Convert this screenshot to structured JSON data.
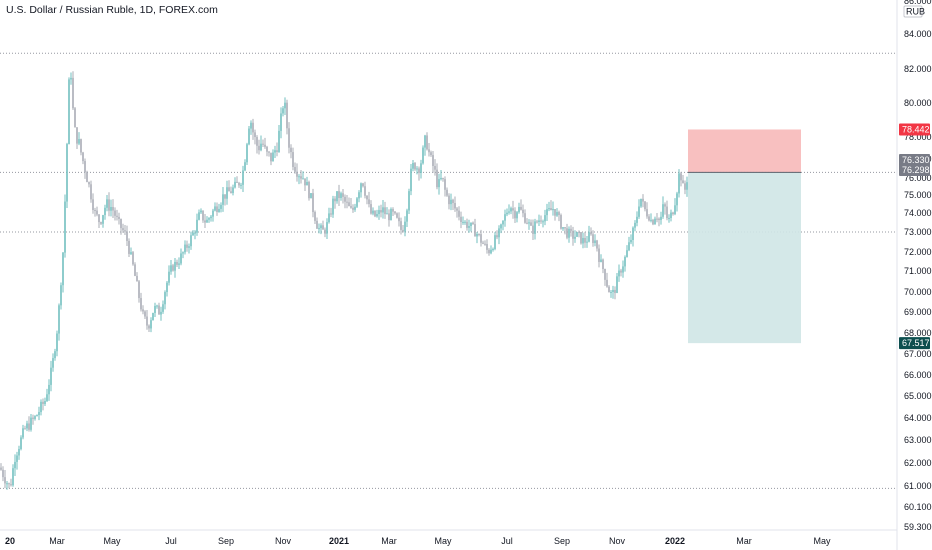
{
  "chart_data": {
    "type": "candlestick",
    "title": "U.S. Dollar / Russian Ruble, 1D, FOREX.com",
    "currency_label": "RUB",
    "y_ticks": [
      "86.000",
      "84.000",
      "82.000",
      "80.000",
      "78.000",
      "77.000",
      "76.000",
      "75.000",
      "74.000",
      "73.000",
      "72.000",
      "71.000",
      "70.000",
      "69.000",
      "68.000",
      "67.000",
      "66.000",
      "65.000",
      "64.000",
      "63.000",
      "62.000",
      "61.000",
      "60.100",
      "59.300"
    ],
    "x_ticks": [
      "20",
      "Mar",
      "May",
      "Jul",
      "Sep",
      "Nov",
      "2021",
      "Mar",
      "May",
      "Jul",
      "Sep",
      "Nov",
      "2022",
      "Mar",
      "May"
    ],
    "price_tags": [
      {
        "label": "78.442",
        "color": "#f23645"
      },
      {
        "label": "76.330",
        "color": "#787b86"
      },
      {
        "label": "76.298",
        "color": "#787b86"
      },
      {
        "label": "67.517",
        "color": "#0d4f4f"
      }
    ],
    "horizontal_lines": [
      82.9,
      76.298,
      73.0,
      60.9
    ],
    "position_tool": {
      "stop": 78.442,
      "entry": 76.298,
      "target": 67.517
    },
    "series_anchors": [
      [
        0,
        61.8
      ],
      [
        10,
        60.9
      ],
      [
        15,
        62.3
      ],
      [
        25,
        63.5
      ],
      [
        35,
        64.0
      ],
      [
        45,
        64.8
      ],
      [
        52,
        66.3
      ],
      [
        58,
        68.5
      ],
      [
        63,
        72.0
      ],
      [
        66,
        76.0
      ],
      [
        70,
        82.8
      ],
      [
        74,
        78.5
      ],
      [
        80,
        77.5
      ],
      [
        85,
        76.5
      ],
      [
        90,
        75.3
      ],
      [
        95,
        74.0
      ],
      [
        100,
        73.5
      ],
      [
        106,
        74.5
      ],
      [
        112,
        74.3
      ],
      [
        118,
        73.5
      ],
      [
        126,
        72.8
      ],
      [
        132,
        71.5
      ],
      [
        138,
        70.0
      ],
      [
        143,
        68.8
      ],
      [
        148,
        68.3
      ],
      [
        154,
        69.2
      ],
      [
        160,
        69.0
      ],
      [
        166,
        70.3
      ],
      [
        172,
        71.2
      ],
      [
        178,
        71.5
      ],
      [
        186,
        72.2
      ],
      [
        194,
        73.0
      ],
      [
        200,
        74.0
      ],
      [
        206,
        73.5
      ],
      [
        212,
        74.0
      ],
      [
        218,
        74.5
      ],
      [
        224,
        75.0
      ],
      [
        230,
        75.2
      ],
      [
        236,
        75.5
      ],
      [
        242,
        76.0
      ],
      [
        246,
        77.5
      ],
      [
        250,
        79.2
      ],
      [
        254,
        78.0
      ],
      [
        258,
        77.5
      ],
      [
        262,
        77.8
      ],
      [
        266,
        77.2
      ],
      [
        272,
        77.0
      ],
      [
        278,
        77.8
      ],
      [
        284,
        80.3
      ],
      [
        288,
        78.0
      ],
      [
        292,
        77.0
      ],
      [
        296,
        76.5
      ],
      [
        300,
        76.2
      ],
      [
        304,
        76.0
      ],
      [
        310,
        75.0
      ],
      [
        314,
        74.0
      ],
      [
        318,
        73.2
      ],
      [
        324,
        73.0
      ],
      [
        328,
        73.5
      ],
      [
        334,
        74.8
      ],
      [
        340,
        75.0
      ],
      [
        346,
        74.5
      ],
      [
        352,
        74.0
      ],
      [
        358,
        75.2
      ],
      [
        362,
        76.0
      ],
      [
        366,
        75.0
      ],
      [
        370,
        74.0
      ],
      [
        376,
        73.8
      ],
      [
        382,
        74.2
      ],
      [
        388,
        73.8
      ],
      [
        392,
        74.0
      ],
      [
        398,
        73.5
      ],
      [
        402,
        73.0
      ],
      [
        406,
        74.0
      ],
      [
        410,
        76.0
      ],
      [
        414,
        76.8
      ],
      [
        418,
        76.5
      ],
      [
        422,
        77.0
      ],
      [
        426,
        78.0
      ],
      [
        430,
        77.0
      ],
      [
        434,
        76.5
      ],
      [
        438,
        75.5
      ],
      [
        442,
        76.0
      ],
      [
        446,
        75.0
      ],
      [
        452,
        74.5
      ],
      [
        458,
        74.0
      ],
      [
        464,
        73.5
      ],
      [
        470,
        73.3
      ],
      [
        476,
        73.0
      ],
      [
        482,
        72.5
      ],
      [
        488,
        72.0
      ],
      [
        494,
        72.5
      ],
      [
        500,
        73.0
      ],
      [
        506,
        74.0
      ],
      [
        510,
        74.5
      ],
      [
        514,
        74.0
      ],
      [
        518,
        74.3
      ],
      [
        522,
        74.0
      ],
      [
        528,
        73.5
      ],
      [
        532,
        73.0
      ],
      [
        536,
        73.5
      ],
      [
        542,
        73.8
      ],
      [
        548,
        74.0
      ],
      [
        554,
        74.3
      ],
      [
        560,
        73.5
      ],
      [
        566,
        73.0
      ],
      [
        572,
        72.8
      ],
      [
        578,
        72.8
      ],
      [
        584,
        72.5
      ],
      [
        590,
        72.8
      ],
      [
        596,
        72.5
      ],
      [
        600,
        71.5
      ],
      [
        604,
        71.0
      ],
      [
        608,
        70.2
      ],
      [
        612,
        69.8
      ],
      [
        616,
        70.3
      ],
      [
        620,
        71.0
      ],
      [
        624,
        71.5
      ],
      [
        630,
        72.5
      ],
      [
        636,
        73.5
      ],
      [
        640,
        75.0
      ],
      [
        644,
        74.2
      ],
      [
        648,
        74.0
      ],
      [
        652,
        73.5
      ],
      [
        656,
        74.0
      ],
      [
        660,
        73.5
      ],
      [
        664,
        74.5
      ],
      [
        668,
        73.5
      ],
      [
        672,
        74.0
      ],
      [
        676,
        75.0
      ],
      [
        680,
        76.5
      ],
      [
        684,
        75.0
      ],
      [
        688,
        76.3
      ]
    ]
  }
}
